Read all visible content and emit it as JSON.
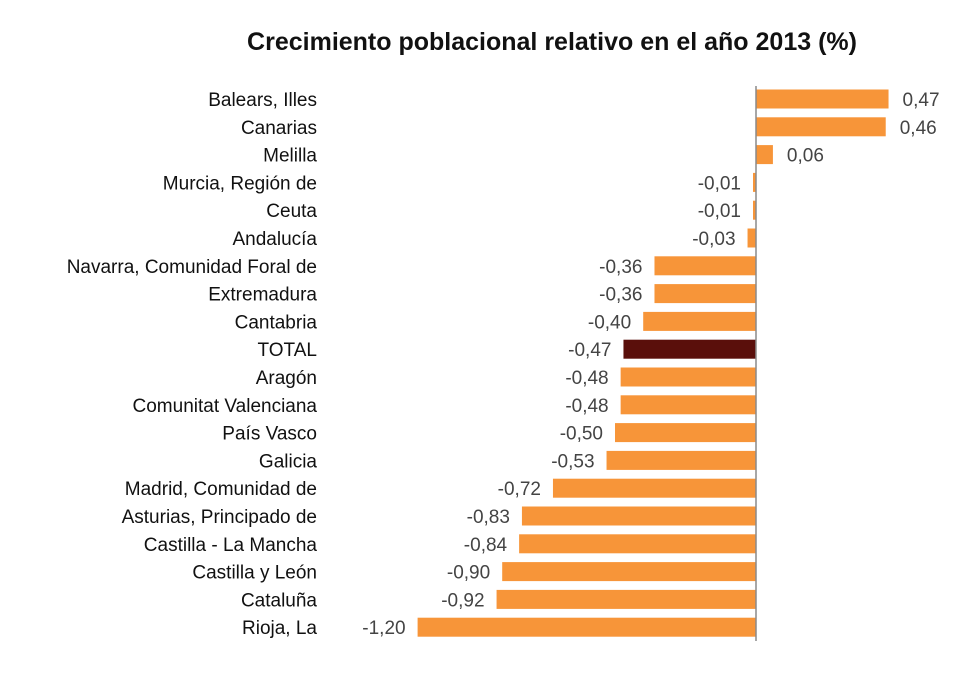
{
  "chart_data": {
    "type": "bar",
    "orientation": "horizontal",
    "title": "Crecimiento poblacional relativo en el año 2013 (%)",
    "xlabel": "",
    "ylabel": "",
    "xlim": [
      -1.2,
      0.47
    ],
    "grid": false,
    "legend": "none",
    "categories": [
      "Balears, Illes",
      "Canarias",
      "Melilla",
      "Murcia, Región de",
      "Ceuta",
      "Andalucía",
      "Navarra, Comunidad Foral de",
      "Extremadura",
      "Cantabria",
      "TOTAL",
      "Aragón",
      "Comunitat Valenciana",
      "País Vasco",
      "Galicia",
      "Madrid, Comunidad de",
      "Asturias, Principado de",
      "Castilla - La Mancha",
      "Castilla y León",
      "Cataluña",
      "Rioja, La"
    ],
    "values": [
      0.47,
      0.46,
      0.06,
      -0.01,
      -0.01,
      -0.03,
      -0.36,
      -0.36,
      -0.4,
      -0.47,
      -0.48,
      -0.48,
      -0.5,
      -0.53,
      -0.72,
      -0.83,
      -0.84,
      -0.9,
      -0.92,
      -1.2
    ],
    "value_labels": [
      "0,47",
      "0,46",
      "0,06",
      "-0,01",
      "-0,01",
      "-0,03",
      "-0,36",
      "-0,36",
      "-0,40",
      "-0,47",
      "-0,48",
      "-0,48",
      "-0,50",
      "-0,53",
      "-0,72",
      "-0,83",
      "-0,84",
      "-0,90",
      "-0,92",
      "-1,20"
    ],
    "highlight": "TOTAL",
    "colors": {
      "bar": "#F79539",
      "highlight": "#5A0F0B",
      "axis": "#8A8A8A"
    }
  }
}
